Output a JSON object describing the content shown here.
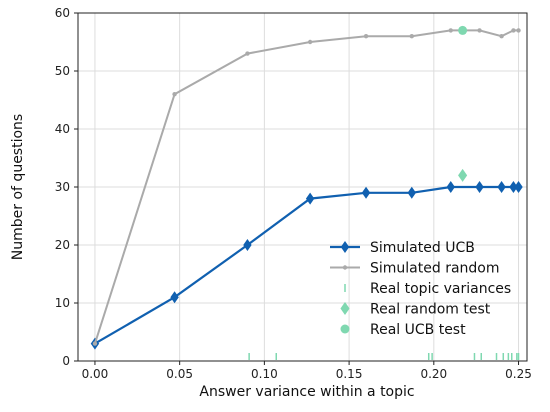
{
  "chart_data": {
    "type": "line",
    "xlabel": "Answer variance within a topic",
    "ylabel": "Number of questions",
    "xlim": [
      -0.01,
      0.255
    ],
    "ylim": [
      0,
      60
    ],
    "x_ticks": [
      0.0,
      0.05,
      0.1,
      0.15,
      0.2,
      0.25
    ],
    "x_tick_labels": [
      "0.00",
      "0.05",
      "0.10",
      "0.15",
      "0.20",
      "0.25"
    ],
    "y_ticks": [
      0,
      10,
      20,
      30,
      40,
      50,
      60
    ],
    "y_tick_labels": [
      "0",
      "10",
      "20",
      "30",
      "40",
      "50",
      "60"
    ],
    "grid": true,
    "legend_position": "lower-right",
    "series": [
      {
        "name": "Simulated UCB",
        "color": "#1060b0",
        "marker": "diamond",
        "points": [
          [
            0.0,
            3
          ],
          [
            0.047,
            11
          ],
          [
            0.09,
            20
          ],
          [
            0.127,
            28
          ],
          [
            0.16,
            29
          ],
          [
            0.187,
            29
          ],
          [
            0.21,
            30
          ],
          [
            0.227,
            30
          ],
          [
            0.24,
            30
          ],
          [
            0.247,
            30
          ],
          [
            0.25,
            30
          ]
        ]
      },
      {
        "name": "Simulated random",
        "color": "#aaaaaa",
        "marker": "dot",
        "points": [
          [
            0.0,
            3
          ],
          [
            0.047,
            46
          ],
          [
            0.09,
            53
          ],
          [
            0.127,
            55
          ],
          [
            0.16,
            56
          ],
          [
            0.187,
            56
          ],
          [
            0.21,
            57
          ],
          [
            0.227,
            57
          ],
          [
            0.24,
            56
          ],
          [
            0.247,
            57
          ],
          [
            0.25,
            57
          ]
        ]
      },
      {
        "name": "Real topic variances",
        "color": "#7fd8b0",
        "marker": "vline",
        "x": [
          0.091,
          0.107,
          0.197,
          0.199,
          0.224,
          0.228,
          0.237,
          0.241,
          0.244,
          0.246,
          0.249,
          0.25
        ]
      },
      {
        "name": "Real random test",
        "color": "#7fd8b0",
        "marker": "diamond",
        "points": [
          [
            0.217,
            32
          ]
        ]
      },
      {
        "name": "Real UCB test",
        "color": "#7fd8b0",
        "marker": "circle",
        "points": [
          [
            0.217,
            57
          ]
        ]
      }
    ]
  }
}
